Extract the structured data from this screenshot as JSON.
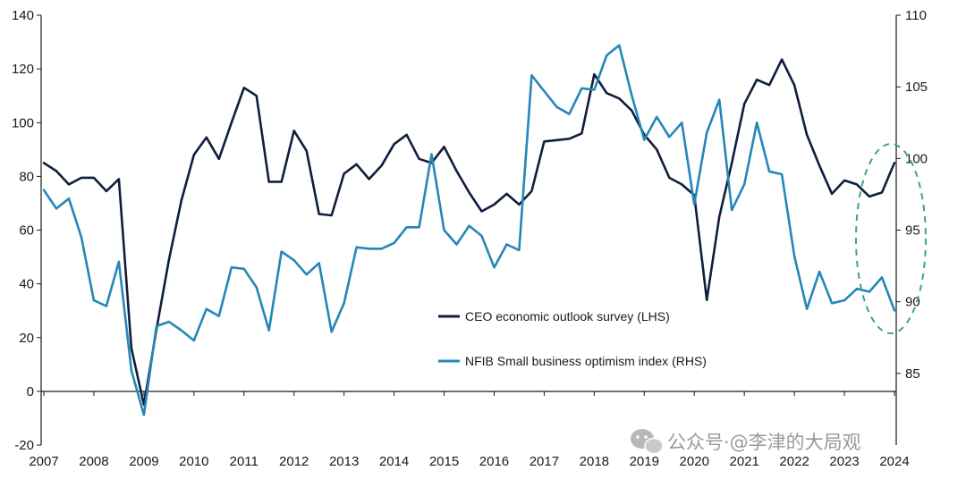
{
  "chart_data": {
    "type": "line",
    "title": "",
    "x_start": 2007,
    "x_step": 0.25,
    "x_ticks": [
      "2007",
      "2008",
      "2009",
      "2010",
      "2011",
      "2012",
      "2013",
      "2014",
      "2015",
      "2016",
      "2017",
      "2018",
      "2019",
      "2020",
      "2021",
      "2022",
      "2023",
      "2024"
    ],
    "y_left": {
      "min": -20,
      "max": 140,
      "ticks": [
        "-20",
        "0",
        "20",
        "40",
        "60",
        "80",
        "100",
        "120",
        "140"
      ]
    },
    "y_right": {
      "min": 80,
      "max": 110,
      "ticks": [
        "85",
        "90",
        "95",
        "100",
        "105",
        "110"
      ]
    },
    "series": [
      {
        "name": "CEO economic outlook survey",
        "axis": "left",
        "color": "#0f1e3c",
        "values": [
          85.0,
          82.0,
          77.0,
          79.5,
          79.5,
          74.5,
          79.0,
          16.0,
          -5.0,
          23.0,
          49.0,
          71.0,
          88.0,
          94.5,
          86.5,
          100.0,
          113.0,
          110.0,
          78.0,
          78.0,
          97.0,
          89.5,
          66.0,
          65.5,
          81.0,
          84.5,
          79.0,
          84.0,
          92.0,
          95.5,
          86.5,
          85.0,
          91.0,
          82.0,
          74.0,
          67.0,
          69.5,
          73.5,
          69.5,
          74.5,
          93.0,
          93.5,
          94.0,
          96.0,
          118.0,
          111.0,
          109.0,
          104.5,
          95.5,
          90.0,
          79.5,
          77.0,
          73.0,
          34.0,
          65.0,
          85.0,
          107.0,
          116.0,
          114.0,
          123.5,
          114.0,
          95.5,
          84.0,
          73.5,
          78.5,
          77.0,
          72.5,
          74.0,
          85.0
        ]
      },
      {
        "name": "NFIB Small business optimism index",
        "axis": "right",
        "color": "#2487b8",
        "values": [
          97.8,
          96.5,
          97.2,
          94.5,
          90.1,
          89.7,
          92.8,
          85.2,
          82.1,
          88.3,
          88.6,
          88.0,
          87.3,
          89.5,
          89.0,
          92.4,
          92.3,
          91.0,
          88.0,
          93.5,
          92.9,
          91.9,
          92.7,
          87.9,
          89.9,
          93.8,
          93.7,
          93.7,
          94.1,
          95.2,
          95.2,
          100.3,
          95.0,
          94.0,
          95.3,
          94.6,
          92.4,
          94.0,
          93.6,
          105.8,
          104.7,
          103.6,
          103.1,
          104.9,
          104.8,
          107.2,
          107.9,
          104.4,
          101.3,
          102.9,
          101.5,
          102.5,
          96.8,
          101.8,
          104.1,
          96.4,
          98.2,
          102.5,
          99.1,
          98.9,
          93.2,
          89.5,
          92.1,
          89.9,
          90.1,
          90.9,
          90.7,
          91.7,
          89.4
        ]
      }
    ],
    "legend": {
      "position": "center-right",
      "entries": [
        "CEO economic outlook survey (LHS)",
        "NFIB Small business optimism index (RHS)"
      ]
    },
    "annotations": [
      {
        "type": "dashed-ellipse",
        "color": "#3aa58a",
        "around": "2024"
      }
    ]
  },
  "watermark": {
    "text": "公众号·@李津的大局观",
    "icon": "chat-bubble-icon"
  }
}
